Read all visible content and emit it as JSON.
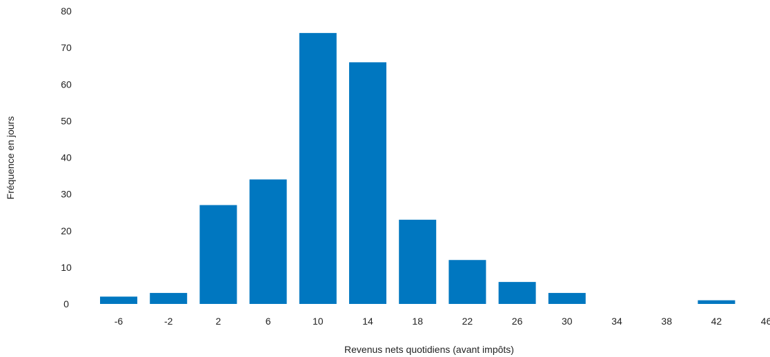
{
  "chart_data": {
    "type": "bar",
    "title": "",
    "xlabel": "Revenus nets quotidiens (avant impôts)",
    "ylabel": "Fréquence en jours",
    "ylim": [
      0,
      80
    ],
    "yticks": [
      "0",
      "10",
      "20",
      "30",
      "40",
      "50",
      "60",
      "70",
      "80"
    ],
    "categories": [
      "-6",
      "-2",
      "2",
      "6",
      "10",
      "14",
      "18",
      "22",
      "26",
      "30",
      "34",
      "38",
      "42",
      "46"
    ],
    "values": [
      2,
      3,
      27,
      34,
      74,
      66,
      23,
      12,
      6,
      3,
      0,
      0,
      1,
      0
    ],
    "grid": false,
    "colors": {
      "bar": "#0077c0"
    }
  }
}
